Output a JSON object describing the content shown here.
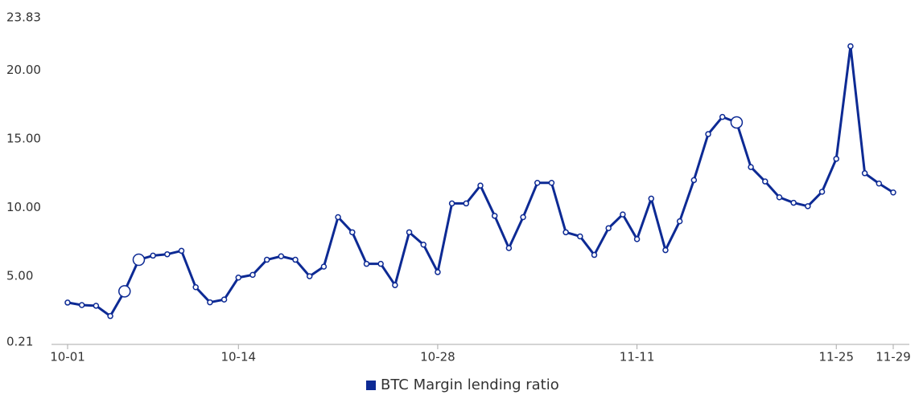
{
  "chart_data": {
    "type": "line",
    "categories": [
      "10-01",
      null,
      null,
      null,
      null,
      null,
      null,
      null,
      null,
      null,
      null,
      null,
      "10-14",
      null,
      null,
      null,
      null,
      null,
      null,
      null,
      null,
      null,
      null,
      null,
      null,
      null,
      "10-28",
      null,
      null,
      null,
      null,
      null,
      null,
      null,
      null,
      null,
      null,
      null,
      null,
      null,
      "11-11",
      null,
      null,
      null,
      null,
      null,
      null,
      null,
      null,
      null,
      null,
      null,
      null,
      null,
      "11-25",
      null,
      null,
      null,
      "11-29"
    ],
    "series": [
      {
        "name": "BTC Margin lending ratio",
        "color": "#0d2a94",
        "values": [
          3.08,
          2.9,
          2.85,
          2.1,
          3.9,
          6.2,
          6.5,
          6.6,
          6.85,
          4.2,
          3.1,
          3.3,
          4.9,
          5.1,
          6.2,
          6.45,
          6.2,
          5.0,
          5.7,
          9.3,
          8.2,
          5.9,
          5.9,
          4.35,
          8.2,
          7.3,
          5.3,
          10.3,
          10.3,
          11.6,
          9.4,
          7.05,
          9.3,
          11.8,
          11.8,
          8.2,
          7.9,
          6.55,
          8.5,
          9.5,
          7.7,
          10.65,
          6.9,
          9.0,
          12.0,
          15.35,
          16.6,
          16.2,
          12.95,
          11.9,
          10.75,
          10.35,
          10.1,
          11.15,
          13.55,
          21.75,
          12.5,
          11.75,
          11.1
        ]
      }
    ],
    "highlighted_points": [
      4,
      5,
      47
    ],
    "ylim": [
      0.21,
      23.83
    ],
    "yticks": [
      0.21,
      {
        "value": 5,
        "label": "5.00"
      },
      {
        "value": 10,
        "label": "10.00"
      },
      {
        "value": 15,
        "label": "15.00"
      },
      {
        "value": 20,
        "label": "20.00"
      },
      23.83
    ],
    "grid": false,
    "legend": "bottom"
  }
}
